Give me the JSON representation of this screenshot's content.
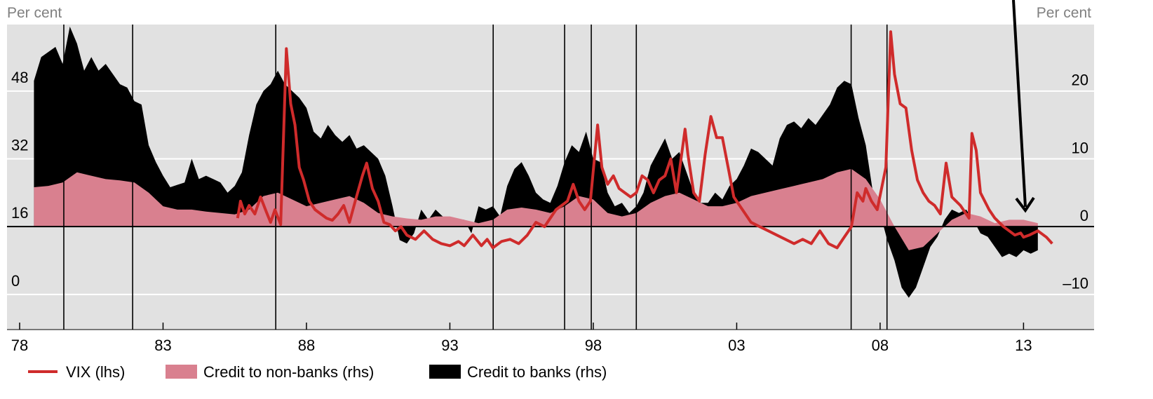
{
  "chart_data": {
    "type": "line",
    "left_axis_label": "Per cent",
    "right_axis_label": "Per cent",
    "xlim": [
      1977.56,
      2015.46
    ],
    "xticks": [
      {
        "value": 1978,
        "label": "78"
      },
      {
        "value": 1983,
        "label": "83"
      },
      {
        "value": 1988,
        "label": "88"
      },
      {
        "value": 1993,
        "label": "93"
      },
      {
        "value": 1998,
        "label": "98"
      },
      {
        "value": 2003,
        "label": "03"
      },
      {
        "value": 2008,
        "label": "08"
      },
      {
        "value": 2013,
        "label": "13"
      }
    ],
    "ylim": [
      -8.3,
      63.7
    ],
    "yticks": [
      0,
      16,
      32,
      48
    ],
    "y2lim": [
      -15.2,
      29.8
    ],
    "y2ticks": [
      {
        "value": -10,
        "label": "–10"
      },
      0,
      10,
      20
    ],
    "grid": true,
    "event_lines": [
      1979.54,
      1981.94,
      1986.93,
      1994.51,
      1997.0,
      1997.93,
      1999.5,
      2006.99,
      2008.24
    ],
    "series": [
      {
        "name": "VIX (lhs)",
        "type": "line",
        "axis": "y",
        "color": "#cf2b2b",
        "x": [
          1985.6,
          1985.7,
          1985.85,
          1986.0,
          1986.2,
          1986.4,
          1986.6,
          1986.75,
          1986.9,
          1987.1,
          1987.3,
          1987.45,
          1987.6,
          1987.75,
          1987.9,
          1988.1,
          1988.3,
          1988.5,
          1988.7,
          1988.9,
          1989.1,
          1989.3,
          1989.5,
          1989.7,
          1989.95,
          1990.1,
          1990.3,
          1990.5,
          1990.7,
          1990.9,
          1991.1,
          1991.3,
          1991.5,
          1991.8,
          1992.1,
          1992.4,
          1992.7,
          1993.0,
          1993.3,
          1993.5,
          1993.8,
          1994.1,
          1994.3,
          1994.5,
          1994.8,
          1995.1,
          1995.4,
          1995.7,
          1996.0,
          1996.3,
          1996.5,
          1996.7,
          1996.9,
          1997.1,
          1997.3,
          1997.5,
          1997.7,
          1997.9,
          1998.15,
          1998.3,
          1998.5,
          1998.7,
          1998.9,
          1999.1,
          1999.3,
          1999.5,
          1999.7,
          1999.9,
          2000.1,
          2000.3,
          2000.5,
          2000.7,
          2000.9,
          2001.2,
          2001.3,
          2001.5,
          2001.7,
          2001.9,
          2002.1,
          2002.3,
          2002.5,
          2002.7,
          2002.9,
          2003.2,
          2003.5,
          2003.8,
          2004.1,
          2004.4,
          2004.7,
          2005.0,
          2005.3,
          2005.6,
          2005.9,
          2006.2,
          2006.5,
          2006.7,
          2007.0,
          2007.2,
          2007.4,
          2007.5,
          2007.7,
          2007.9,
          2008.2,
          2008.37,
          2008.5,
          2008.7,
          2008.9,
          2009.1,
          2009.3,
          2009.5,
          2009.7,
          2009.9,
          2010.1,
          2010.3,
          2010.5,
          2010.8,
          2011.0,
          2011.1,
          2011.2,
          2011.35,
          2011.5,
          2011.8,
          2012.0,
          2012.3,
          2012.5,
          2012.7,
          2012.9,
          2013.0,
          2013.2,
          2013.5,
          2013.8,
          2014.0
        ],
        "values": [
          18,
          22,
          19,
          21,
          19,
          23,
          19.5,
          17,
          20,
          16.5,
          58,
          45,
          40,
          30,
          27,
          22,
          20,
          19,
          18,
          17.5,
          19,
          21,
          17,
          22,
          28,
          31,
          25,
          22,
          17,
          16.5,
          15,
          16,
          14,
          13,
          15,
          13,
          12,
          11.5,
          12.5,
          11.5,
          14,
          11.5,
          13,
          11,
          12.5,
          13,
          12,
          14,
          17,
          16,
          18,
          20,
          21,
          22,
          26,
          22,
          20,
          22,
          40,
          30,
          26,
          28,
          25,
          24,
          23,
          24,
          28,
          27,
          24,
          27,
          28,
          32,
          24,
          39,
          33,
          24,
          22,
          33,
          42,
          37,
          37,
          30,
          23,
          20,
          17,
          16,
          15,
          14,
          13,
          12,
          13,
          12,
          15,
          12,
          11,
          13,
          16,
          24,
          22,
          25,
          22,
          20,
          30,
          62,
          52,
          45,
          44,
          34,
          27,
          24,
          22,
          21,
          19,
          31,
          23,
          21,
          19,
          18,
          38,
          34,
          24,
          20,
          18,
          16,
          15,
          14,
          14.5,
          13.5,
          14,
          15,
          13.5,
          12
        ]
      },
      {
        "name": "Credit to non-banks (rhs)",
        "type": "area",
        "axis": "y2",
        "color": "#d9808f",
        "x": [
          1978.5,
          1979,
          1979.5,
          1980,
          1980.5,
          1981,
          1981.5,
          1982,
          1982.5,
          1983,
          1983.5,
          1984,
          1984.5,
          1985,
          1985.5,
          1986,
          1986.5,
          1987,
          1987.5,
          1988,
          1988.5,
          1989,
          1989.5,
          1990,
          1990.5,
          1991,
          1991.5,
          1992,
          1992.5,
          1993,
          1993.5,
          1994,
          1994.5,
          1995,
          1995.5,
          1996,
          1996.5,
          1997,
          1997.5,
          1998,
          1998.5,
          1999,
          1999.5,
          2000,
          2000.5,
          2001,
          2001.5,
          2002,
          2002.5,
          2003,
          2003.5,
          2004,
          2004.5,
          2005,
          2005.5,
          2006,
          2006.5,
          2007,
          2007.5,
          2008,
          2008.5,
          2009,
          2009.5,
          2010,
          2010.5,
          2011,
          2011.5,
          2012,
          2012.5,
          2013,
          2013.5
        ],
        "values": [
          5.8,
          6,
          6.5,
          8,
          7.5,
          7,
          6.8,
          6.5,
          5,
          3,
          2.5,
          2.5,
          2.2,
          2,
          1.8,
          2.5,
          4.5,
          5,
          4,
          3,
          3.5,
          4,
          4.5,
          3.5,
          2,
          1.5,
          1.2,
          1,
          1.5,
          1.5,
          1,
          0.5,
          1,
          2.5,
          2.8,
          2.5,
          2,
          3,
          4.5,
          4,
          2,
          1.5,
          2,
          3.5,
          4.5,
          5,
          4,
          3,
          3,
          3.5,
          4.5,
          5,
          5.5,
          6,
          6.5,
          7,
          8,
          8.5,
          7,
          4,
          0,
          -3.5,
          -3,
          -1,
          1,
          2,
          1.5,
          0.5,
          1,
          1,
          0.5
        ]
      },
      {
        "name": "Credit to banks (rhs)",
        "type": "area",
        "axis": "y2",
        "color": "#3badе3",
        "x": [
          1978.5,
          1978.75,
          1979.25,
          1979.5,
          1979.75,
          1980.0,
          1980.25,
          1980.5,
          1980.75,
          1981.0,
          1981.25,
          1981.5,
          1981.75,
          1982.0,
          1982.25,
          1982.5,
          1982.75,
          1983.0,
          1983.25,
          1983.75,
          1984.0,
          1984.25,
          1984.5,
          1984.75,
          1985.0,
          1985.25,
          1985.5,
          1985.75,
          1986.0,
          1986.25,
          1986.5,
          1986.75,
          1987.0,
          1987.25,
          1987.5,
          1987.75,
          1988.0,
          1988.25,
          1988.5,
          1988.75,
          1989.0,
          1989.25,
          1989.5,
          1989.75,
          1990.0,
          1990.25,
          1990.5,
          1990.75,
          1991.0,
          1991.25,
          1991.5,
          1991.75,
          1992.0,
          1992.25,
          1992.5,
          1992.75,
          1993.0,
          1993.5,
          1993.75,
          1994.0,
          1994.25,
          1994.5,
          1994.75,
          1995.0,
          1995.25,
          1995.5,
          1995.75,
          1996.0,
          1996.25,
          1996.5,
          1996.75,
          1997.0,
          1997.25,
          1997.5,
          1997.75,
          1998.0,
          1998.25,
          1998.5,
          1998.75,
          1999.0,
          1999.25,
          1999.5,
          1999.75,
          2000.0,
          2000.25,
          2000.5,
          2000.75,
          2001.0,
          2001.25,
          2001.5,
          2001.75,
          2002.0,
          2002.25,
          2002.5,
          2002.75,
          2003.0,
          2003.25,
          2003.5,
          2003.75,
          2004.0,
          2004.25,
          2004.5,
          2004.75,
          2005.0,
          2005.25,
          2005.5,
          2005.75,
          2006.0,
          2006.25,
          2006.5,
          2006.75,
          2007.0,
          2007.25,
          2007.5,
          2007.75,
          2008.0,
          2008.25,
          2008.5,
          2008.75,
          2009.0,
          2009.25,
          2009.5,
          2009.75,
          2010.0,
          2010.25,
          2010.5,
          2010.75,
          2011.0,
          2011.25,
          2011.5,
          2011.75,
          2012.0,
          2012.25,
          2012.5,
          2012.75,
          2013.0,
          2013.25,
          2013.5
        ],
        "values": [
          21.5,
          25,
          26.5,
          24,
          29.5,
          27,
          23,
          25,
          23,
          24,
          22.5,
          21,
          20.5,
          18.5,
          18,
          12,
          9.5,
          7.5,
          5.8,
          6.5,
          10,
          7,
          7.5,
          7,
          6.5,
          5,
          6,
          8,
          13.5,
          18,
          20,
          21,
          23,
          21,
          20,
          19,
          17.5,
          14,
          13,
          15,
          13.5,
          12.5,
          13.5,
          11.5,
          12,
          11,
          10,
          7.5,
          3,
          -2,
          -2.5,
          -1,
          2.5,
          1,
          2.5,
          1.5,
          1,
          1,
          -1,
          3,
          2.5,
          3,
          1.5,
          6,
          8.5,
          9.5,
          7.5,
          5,
          4,
          3.5,
          6,
          9.5,
          12,
          11,
          14,
          10,
          9.5,
          5,
          3,
          3.5,
          2,
          3,
          5,
          9,
          11,
          13,
          10,
          11,
          8,
          5,
          3.5,
          3.5,
          5,
          4,
          6,
          7,
          9,
          11.5,
          11,
          10,
          9,
          13,
          15,
          15.5,
          14.5,
          16,
          15,
          16.5,
          18,
          20.5,
          21.5,
          21,
          16,
          12,
          5,
          2,
          -2,
          -5,
          -9,
          -10.5,
          -9,
          -6,
          -3,
          -1.5,
          1,
          2.5,
          2,
          2.5,
          1,
          -1,
          -1.5,
          -3,
          -4.5,
          -4,
          -4.5,
          -3.5,
          -4,
          -3.5
        ]
      }
    ]
  }
}
